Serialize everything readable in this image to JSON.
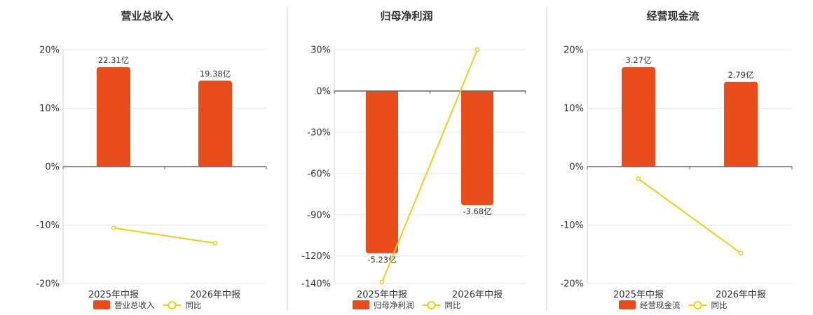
{
  "colors": {
    "bar": "#e84c1b",
    "line": "#f2cd18",
    "grid": "#e6e6e6",
    "axis": "#666666",
    "divider": "#cccccc"
  },
  "chart_data": [
    {
      "type": "bar",
      "title": "营业总收入",
      "categories": [
        "2025年中报",
        "2026年中报"
      ],
      "ylim": [
        -20,
        20
      ],
      "yticks": [
        20,
        10,
        0,
        -10,
        -20
      ],
      "ytick_labels": [
        "20%",
        "10%",
        "0%",
        "-10%",
        "-20%"
      ],
      "series": [
        {
          "name": "营业总收入",
          "kind": "bar",
          "values": [
            22.31,
            19.38
          ],
          "labels": [
            "22.31亿",
            "19.38亿"
          ],
          "bar_percent": [
            17,
            14.7
          ]
        },
        {
          "name": "同比",
          "kind": "line",
          "values": [
            -10.5,
            -13.1
          ]
        }
      ],
      "grid": true,
      "legend": "bottom"
    },
    {
      "type": "bar",
      "title": "归母净利润",
      "categories": [
        "2025年中报",
        "2026年中报"
      ],
      "ylim": [
        -140,
        30
      ],
      "yticks": [
        30,
        0,
        -30,
        -60,
        -90,
        -120,
        -140
      ],
      "ytick_labels": [
        "30%",
        "0%",
        "-30%",
        "-60%",
        "-90%",
        "-120%",
        "-140%"
      ],
      "series": [
        {
          "name": "归母净利润",
          "kind": "bar",
          "values": [
            -5.23,
            -3.68
          ],
          "labels": [
            "-5.23亿",
            "-3.68亿"
          ],
          "bar_percent": [
            -118,
            -83
          ]
        },
        {
          "name": "同比",
          "kind": "line",
          "values": [
            -139,
            30
          ]
        }
      ],
      "grid": true,
      "legend": "bottom"
    },
    {
      "type": "bar",
      "title": "经营现金流",
      "categories": [
        "2025年中报",
        "2026年中报"
      ],
      "ylim": [
        -20,
        20
      ],
      "yticks": [
        20,
        10,
        0,
        -10,
        -20
      ],
      "ytick_labels": [
        "20%",
        "10%",
        "0%",
        "-10%",
        "-20%"
      ],
      "series": [
        {
          "name": "经营现金流",
          "kind": "bar",
          "values": [
            3.27,
            2.79
          ],
          "labels": [
            "3.27亿",
            "2.79亿"
          ],
          "bar_percent": [
            17,
            14.5
          ]
        },
        {
          "name": "同比",
          "kind": "line",
          "values": [
            -2.1,
            -14.8
          ]
        }
      ],
      "grid": true,
      "legend": "bottom"
    }
  ]
}
